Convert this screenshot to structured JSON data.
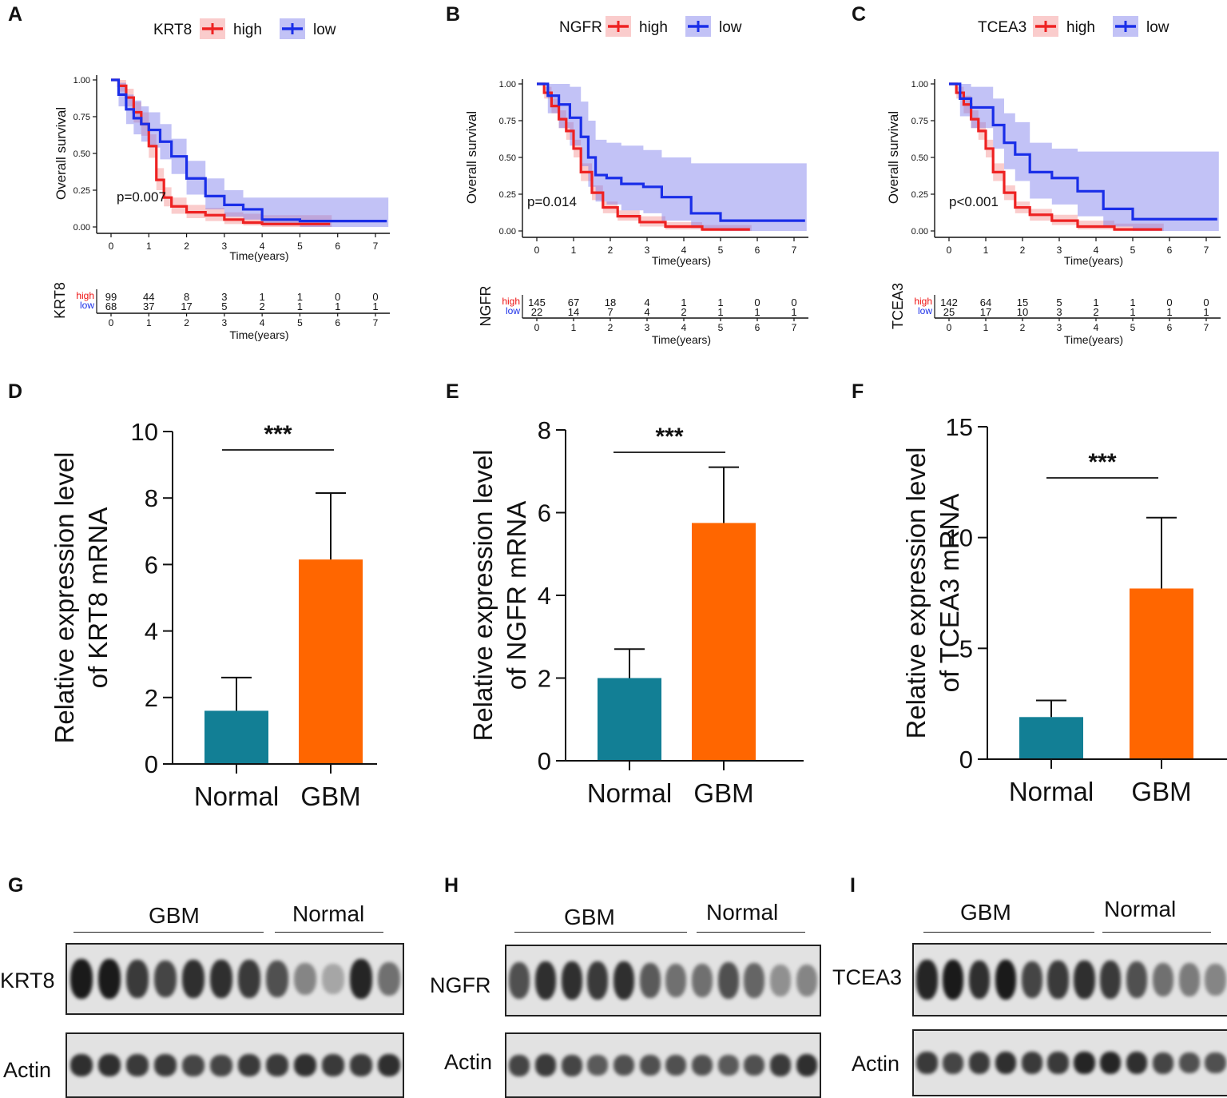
{
  "km_panels": [
    {
      "letter": "A",
      "gene": "KRT8",
      "legend_high": "high",
      "legend_low": "low",
      "ylabel": "Overall survival",
      "xlabel": "Time(years)",
      "p_value": "p=0.007",
      "risk_high_label": "high",
      "risk_low_label": "low",
      "risk_high": [
        "99",
        "44",
        "8",
        "3",
        "1",
        "1",
        "0",
        "0"
      ],
      "risk_low": [
        "68",
        "37",
        "17",
        "5",
        "2",
        "1",
        "1",
        "1"
      ]
    },
    {
      "letter": "B",
      "gene": "NGFR",
      "legend_high": "high",
      "legend_low": "low",
      "ylabel": "Overall survival",
      "xlabel": "Time(years)",
      "p_value": "p=0.014",
      "risk_high_label": "high",
      "risk_low_label": "low",
      "risk_high": [
        "145",
        "67",
        "18",
        "4",
        "1",
        "1",
        "0",
        "0"
      ],
      "risk_low": [
        "22",
        "14",
        "7",
        "4",
        "2",
        "1",
        "1",
        "1"
      ]
    },
    {
      "letter": "C",
      "gene": "TCEA3",
      "legend_high": "high",
      "legend_low": "low",
      "ylabel": "Overall survival",
      "xlabel": "Time(years)",
      "p_value": "p<0.001",
      "risk_high_label": "high",
      "risk_low_label": "low",
      "risk_high": [
        "142",
        "64",
        "15",
        "5",
        "1",
        "1",
        "0",
        "0"
      ],
      "risk_low": [
        "25",
        "17",
        "10",
        "3",
        "2",
        "1",
        "1",
        "1"
      ]
    }
  ],
  "bar_panels": [
    {
      "letter": "D",
      "ylabel_line1": "Relative expression level",
      "ylabel_line2": "of KRT8 mRNA",
      "significance": "***"
    },
    {
      "letter": "E",
      "ylabel_line1": "Relative expression level",
      "ylabel_line2": "of NGFR mRNA",
      "significance": "***"
    },
    {
      "letter": "F",
      "ylabel_line1": "Relative expression level",
      "ylabel_line2": "of TCEA3 mRNA",
      "significance": "***"
    }
  ],
  "blot_panels": [
    {
      "letter": "G",
      "group1": "GBM",
      "group2": "Normal",
      "target": "KRT8",
      "control": "Actin",
      "target_intensity": [
        0.95,
        0.95,
        0.8,
        0.75,
        0.85,
        0.85,
        0.8,
        0.7,
        0.45,
        0.3,
        0.9,
        0.55
      ],
      "control_intensity": [
        0.85,
        0.85,
        0.8,
        0.8,
        0.75,
        0.75,
        0.8,
        0.8,
        0.85,
        0.8,
        0.8,
        0.85
      ]
    },
    {
      "letter": "H",
      "group1": "GBM",
      "group2": "Normal",
      "target": "NGFR",
      "control": "Actin",
      "target_intensity": [
        0.7,
        0.85,
        0.85,
        0.8,
        0.85,
        0.65,
        0.55,
        0.55,
        0.7,
        0.6,
        0.4,
        0.45
      ],
      "control_intensity": [
        0.75,
        0.8,
        0.75,
        0.65,
        0.7,
        0.7,
        0.7,
        0.7,
        0.65,
        0.7,
        0.8,
        0.85
      ]
    },
    {
      "letter": "I",
      "group1": "GBM",
      "group2": "Normal",
      "target": "TCEA3",
      "control": "Actin",
      "target_intensity": [
        0.9,
        0.95,
        0.85,
        0.95,
        0.75,
        0.8,
        0.85,
        0.8,
        0.7,
        0.55,
        0.5,
        0.45
      ],
      "control_intensity": [
        0.8,
        0.75,
        0.8,
        0.85,
        0.8,
        0.8,
        0.9,
        0.9,
        0.85,
        0.75,
        0.7,
        0.7
      ]
    }
  ],
  "chart_data": [
    {
      "type": "line",
      "title": "KRT8",
      "xlabel": "Time(years)",
      "ylabel": "Overall survival",
      "xlim": [
        0,
        7.3
      ],
      "ylim": [
        0,
        1
      ],
      "xticks": [
        "0",
        "1",
        "2",
        "3",
        "4",
        "5",
        "6",
        "7"
      ],
      "yticks": [
        "0.00",
        "0.25",
        "0.50",
        "0.75",
        "1.00"
      ],
      "annotation": "p=0.007",
      "series": [
        {
          "name": "high",
          "color": "#ee2222",
          "band": "rgba(240,110,110,0.35)",
          "x": [
            0,
            0.2,
            0.4,
            0.6,
            0.8,
            1.0,
            1.2,
            1.4,
            1.6,
            2.0,
            2.5,
            3.0,
            3.5,
            4.0,
            5.8
          ],
          "y": [
            1,
            0.96,
            0.88,
            0.78,
            0.7,
            0.55,
            0.32,
            0.2,
            0.14,
            0.1,
            0.08,
            0.05,
            0.03,
            0.02,
            0.02
          ],
          "lower": [
            1,
            0.92,
            0.82,
            0.71,
            0.62,
            0.47,
            0.25,
            0.14,
            0.09,
            0.06,
            0.04,
            0.02,
            0.01,
            0.0,
            0.0
          ],
          "upper": [
            1,
            1,
            0.94,
            0.85,
            0.78,
            0.63,
            0.4,
            0.27,
            0.2,
            0.15,
            0.13,
            0.1,
            0.09,
            0.08,
            0.08
          ]
        },
        {
          "name": "low",
          "color": "#1a2ee8",
          "band": "rgba(120,120,235,0.45)",
          "x": [
            0,
            0.2,
            0.4,
            0.6,
            0.8,
            1.0,
            1.3,
            1.6,
            2.0,
            2.5,
            3.0,
            3.5,
            4.0,
            5.0,
            6.0,
            7.3
          ],
          "y": [
            1,
            0.9,
            0.8,
            0.74,
            0.7,
            0.66,
            0.58,
            0.48,
            0.33,
            0.21,
            0.15,
            0.12,
            0.05,
            0.04,
            0.04,
            0.04
          ],
          "lower": [
            1,
            0.82,
            0.7,
            0.63,
            0.58,
            0.54,
            0.46,
            0.36,
            0.22,
            0.12,
            0.07,
            0.05,
            0.01,
            0.0,
            0.0,
            0.0
          ],
          "upper": [
            1,
            0.98,
            0.9,
            0.86,
            0.82,
            0.78,
            0.7,
            0.6,
            0.45,
            0.33,
            0.25,
            0.2,
            0.2,
            0.2,
            0.2,
            0.2
          ]
        }
      ]
    },
    {
      "type": "line",
      "title": "NGFR",
      "xlabel": "Time(years)",
      "ylabel": "Overall survival",
      "xlim": [
        0,
        7.3
      ],
      "ylim": [
        0,
        1
      ],
      "xticks": [
        "0",
        "1",
        "2",
        "3",
        "4",
        "5",
        "6",
        "7"
      ],
      "yticks": [
        "0.00",
        "0.25",
        "0.50",
        "0.75",
        "1.00"
      ],
      "annotation": "p=0.014",
      "series": [
        {
          "name": "high",
          "color": "#ee2222",
          "band": "rgba(240,110,110,0.35)",
          "x": [
            0,
            0.2,
            0.4,
            0.6,
            0.8,
            1.0,
            1.2,
            1.5,
            1.8,
            2.2,
            2.8,
            3.5,
            4.5,
            5.8
          ],
          "y": [
            1,
            0.94,
            0.85,
            0.76,
            0.68,
            0.56,
            0.4,
            0.26,
            0.16,
            0.1,
            0.06,
            0.03,
            0.01,
            0.01
          ],
          "lower": [
            1,
            0.9,
            0.8,
            0.7,
            0.62,
            0.5,
            0.34,
            0.21,
            0.12,
            0.07,
            0.03,
            0.01,
            0.0,
            0.0
          ],
          "upper": [
            1,
            0.98,
            0.9,
            0.82,
            0.74,
            0.62,
            0.46,
            0.31,
            0.2,
            0.14,
            0.1,
            0.06,
            0.04,
            0.04
          ]
        },
        {
          "name": "low",
          "color": "#1a2ee8",
          "band": "rgba(120,120,235,0.45)",
          "x": [
            0,
            0.3,
            0.6,
            0.9,
            1.2,
            1.4,
            1.6,
            1.9,
            2.3,
            2.9,
            3.4,
            4.2,
            5.0,
            6.0,
            7.3
          ],
          "y": [
            1,
            0.92,
            0.86,
            0.77,
            0.64,
            0.5,
            0.38,
            0.36,
            0.32,
            0.3,
            0.23,
            0.12,
            0.07,
            0.07,
            0.07
          ],
          "lower": [
            1,
            0.8,
            0.7,
            0.58,
            0.44,
            0.3,
            0.2,
            0.18,
            0.14,
            0.12,
            0.07,
            0.02,
            0.0,
            0.0,
            0.0
          ],
          "upper": [
            1,
            1,
            1,
            0.98,
            0.88,
            0.75,
            0.62,
            0.6,
            0.58,
            0.55,
            0.5,
            0.46,
            0.46,
            0.46,
            0.46
          ]
        }
      ]
    },
    {
      "type": "line",
      "title": "TCEA3",
      "xlabel": "Time(years)",
      "ylabel": "Overall survival",
      "xlim": [
        0,
        7.3
      ],
      "ylim": [
        0,
        1
      ],
      "xticks": [
        "0",
        "1",
        "2",
        "3",
        "4",
        "5",
        "6",
        "7"
      ],
      "yticks": [
        "0.00",
        "0.25",
        "0.50",
        "0.75",
        "1.00"
      ],
      "annotation": "p<0.001",
      "series": [
        {
          "name": "high",
          "color": "#ee2222",
          "band": "rgba(240,110,110,0.35)",
          "x": [
            0,
            0.2,
            0.4,
            0.6,
            0.8,
            1.0,
            1.2,
            1.5,
            1.8,
            2.2,
            2.8,
            3.5,
            4.5,
            5.8
          ],
          "y": [
            1,
            0.94,
            0.86,
            0.76,
            0.68,
            0.56,
            0.4,
            0.26,
            0.16,
            0.11,
            0.07,
            0.03,
            0.01,
            0.01
          ],
          "lower": [
            1,
            0.9,
            0.8,
            0.7,
            0.62,
            0.5,
            0.34,
            0.21,
            0.12,
            0.07,
            0.04,
            0.01,
            0.0,
            0.0
          ],
          "upper": [
            1,
            0.98,
            0.92,
            0.82,
            0.74,
            0.62,
            0.46,
            0.31,
            0.2,
            0.15,
            0.11,
            0.07,
            0.05,
            0.05
          ]
        },
        {
          "name": "low",
          "color": "#1a2ee8",
          "band": "rgba(120,120,235,0.45)",
          "x": [
            0,
            0.3,
            0.6,
            0.9,
            1.2,
            1.5,
            1.8,
            2.2,
            2.8,
            3.5,
            4.2,
            5.0,
            6.0,
            7.3
          ],
          "y": [
            1,
            0.9,
            0.84,
            0.84,
            0.72,
            0.6,
            0.52,
            0.4,
            0.36,
            0.27,
            0.15,
            0.08,
            0.08,
            0.08
          ],
          "lower": [
            1,
            0.78,
            0.7,
            0.7,
            0.56,
            0.42,
            0.34,
            0.22,
            0.18,
            0.1,
            0.03,
            0.0,
            0.0,
            0.0
          ],
          "upper": [
            1,
            1,
            0.98,
            0.98,
            0.9,
            0.8,
            0.74,
            0.6,
            0.56,
            0.54,
            0.54,
            0.54,
            0.54,
            0.54
          ]
        }
      ]
    },
    {
      "type": "bar",
      "categories": [
        "Normal",
        "GBM"
      ],
      "values": [
        1.6,
        6.15
      ],
      "errors": [
        1.0,
        2.0
      ],
      "colors": [
        "#127f95",
        "#ff6600"
      ],
      "ylim": [
        0,
        10
      ],
      "yticks": [
        "0",
        "2",
        "4",
        "6",
        "8",
        "10"
      ],
      "ylabel": "Relative expression level of KRT8 mRNA",
      "annotation": "***"
    },
    {
      "type": "bar",
      "categories": [
        "Normal",
        "GBM"
      ],
      "values": [
        2.0,
        5.75
      ],
      "errors": [
        0.7,
        1.35
      ],
      "colors": [
        "#127f95",
        "#ff6600"
      ],
      "ylim": [
        0,
        8
      ],
      "yticks": [
        "0",
        "2",
        "4",
        "6",
        "8"
      ],
      "ylabel": "Relative expression level of NGFR mRNA",
      "annotation": "***"
    },
    {
      "type": "bar",
      "categories": [
        "Normal",
        "GBM"
      ],
      "values": [
        1.9,
        7.7
      ],
      "errors": [
        0.75,
        3.2
      ],
      "colors": [
        "#127f95",
        "#ff6600"
      ],
      "ylim": [
        0,
        15
      ],
      "yticks": [
        "0",
        "5",
        "10",
        "15"
      ],
      "ylabel": "Relative expression level of TCEA3 mRNA",
      "annotation": "***"
    }
  ]
}
